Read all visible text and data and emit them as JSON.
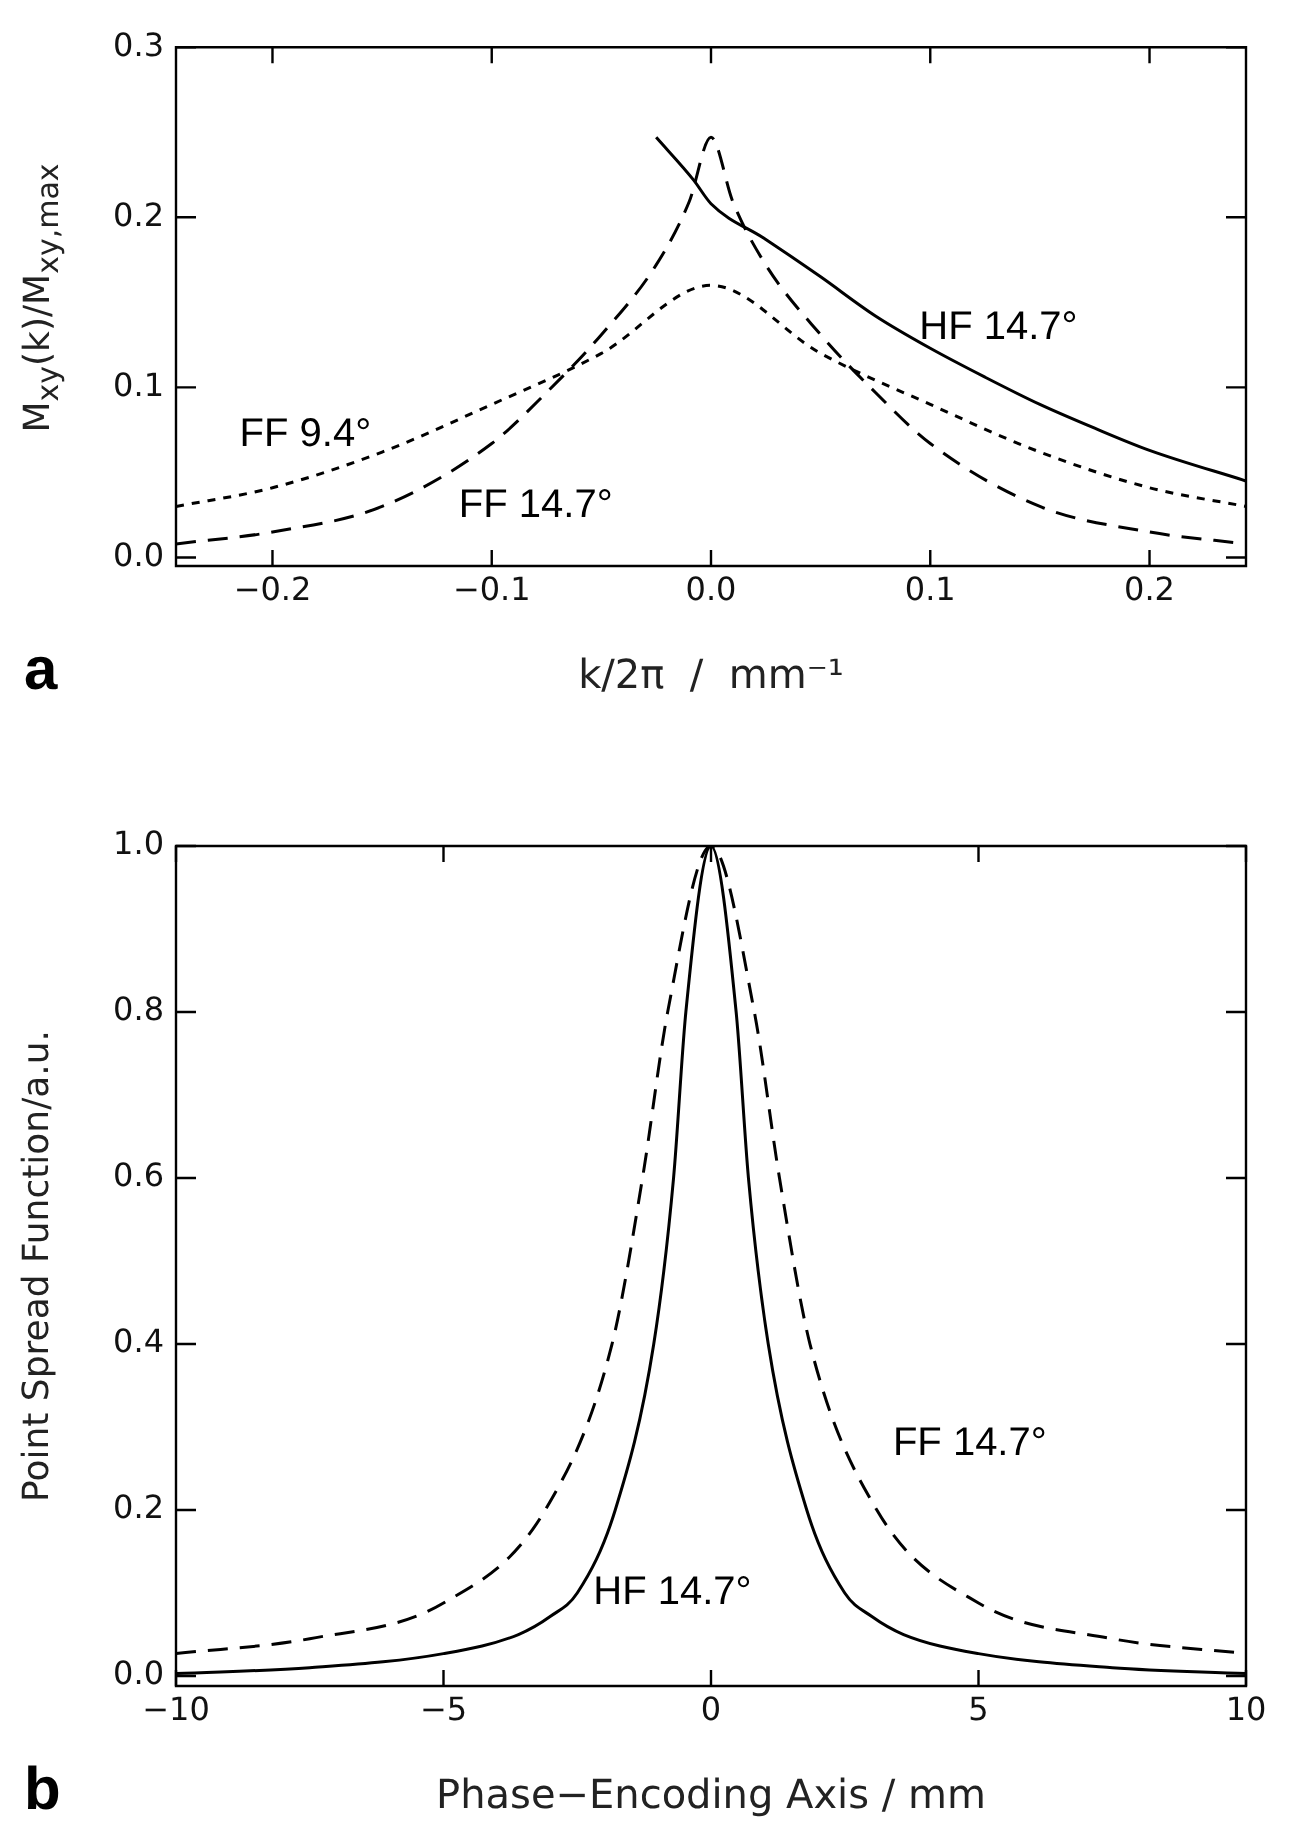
{
  "chart_data": [
    {
      "type": "line",
      "xlabel": "k/2π  /  mm⁻¹",
      "ylabel": "M$_{xy}$(k)/M$_{xy,max}$",
      "xlim": [
        -0.244,
        0.244
      ],
      "ylim": [
        -0.005,
        0.3
      ],
      "xticks": [
        {
          "value": -0.2,
          "label": "−0.2"
        },
        {
          "value": -0.1,
          "label": "−0.1"
        },
        {
          "value": 0,
          "label": "0.0"
        },
        {
          "value": 0.1,
          "label": "0.1"
        },
        {
          "value": 0.2,
          "label": "0.2"
        }
      ],
      "yticks": [
        {
          "value": 0,
          "label": "0.0"
        },
        {
          "value": 0.1,
          "label": "0.1"
        },
        {
          "value": 0.2,
          "label": "0.2"
        },
        {
          "value": 0.3,
          "label": "0.3"
        }
      ],
      "annotations": [
        "a"
      ],
      "series": [
        {
          "name": "HF 14.7°",
          "color": "#000000",
          "line_style": "solid",
          "x": [
            -0.025,
            -0.008,
            0,
            0.025,
            0.05,
            0.075,
            0.1,
            0.125,
            0.15,
            0.175,
            0.2,
            0.244
          ],
          "values": [
            0.247,
            0.222,
            0.208,
            0.187,
            0.165,
            0.142,
            0.123,
            0.106,
            0.09,
            0.076,
            0.063,
            0.045
          ]
        },
        {
          "name": "FF 14.7°",
          "color": "#000000",
          "line_style": "dashed",
          "x": [
            -0.244,
            -0.2,
            -0.15,
            -0.1,
            -0.075,
            -0.05,
            -0.025,
            -0.01,
            0,
            0.01,
            0.025,
            0.05,
            0.075,
            0.1,
            0.15,
            0.2,
            0.244
          ],
          "values": [
            0.008,
            0.015,
            0.03,
            0.067,
            0.097,
            0.131,
            0.172,
            0.209,
            0.247,
            0.209,
            0.172,
            0.131,
            0.097,
            0.067,
            0.03,
            0.015,
            0.008
          ]
        },
        {
          "name": "FF 9.4°",
          "color": "#000000",
          "line_style": "dotted",
          "x": [
            -0.244,
            -0.2,
            -0.15,
            -0.1,
            -0.05,
            0,
            0.05,
            0.1,
            0.15,
            0.2,
            0.244
          ],
          "values": [
            0.03,
            0.041,
            0.062,
            0.09,
            0.12,
            0.16,
            0.12,
            0.09,
            0.062,
            0.041,
            0.03
          ]
        }
      ]
    },
    {
      "type": "line",
      "xlabel": "Phase−Encoding Axis / mm",
      "ylabel": "Point Spread Function/a.u.",
      "xlim": [
        -10,
        10
      ],
      "ylim": [
        -0.012,
        1.0
      ],
      "xticks": [
        {
          "value": -10,
          "label": "−10"
        },
        {
          "value": -5,
          "label": "−5"
        },
        0,
        5,
        10
      ],
      "yticks": [
        {
          "value": 0,
          "label": "0.0"
        },
        {
          "value": 0.2,
          "label": "0.2"
        },
        {
          "value": 0.4,
          "label": "0.4"
        },
        {
          "value": 0.6,
          "label": "0.6"
        },
        {
          "value": 0.8,
          "label": "0.8"
        },
        {
          "value": 1,
          "label": "1.0"
        }
      ],
      "annotations": [
        "b"
      ],
      "series": [
        {
          "name": "HF 14.7°",
          "color": "#000000",
          "line_style": "solid",
          "x": [
            -10,
            -7.5,
            -5,
            -3.6,
            -3,
            -2.5,
            -1.79,
            -1.07,
            -0.7,
            -0.47,
            0,
            0.47,
            0.7,
            1.07,
            1.79,
            2.5,
            3,
            3.6,
            5,
            7.5,
            10
          ],
          "values": [
            0.003,
            0.01,
            0.027,
            0.05,
            0.072,
            0.1,
            0.2,
            0.4,
            0.6,
            0.8,
            1,
            0.8,
            0.6,
            0.4,
            0.2,
            0.1,
            0.072,
            0.05,
            0.027,
            0.01,
            0.003
          ]
        },
        {
          "name": "FF 14.7°",
          "color": "#000000",
          "line_style": "dashed",
          "x": [
            -10,
            -7.5,
            -5,
            -3.1,
            -1.85,
            -1.28,
            -0.81,
            0,
            0.81,
            1.28,
            1.85,
            3.1,
            5,
            7.5,
            10
          ],
          "values": [
            0.027,
            0.045,
            0.088,
            0.2,
            0.4,
            0.6,
            0.8,
            1,
            0.8,
            0.6,
            0.4,
            0.2,
            0.088,
            0.045,
            0.027
          ]
        }
      ]
    }
  ]
}
